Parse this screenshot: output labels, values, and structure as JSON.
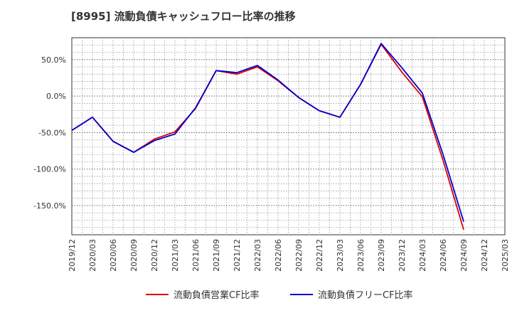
{
  "chart_data": {
    "type": "line",
    "title": "[8995]  流動負債キャッシュフロー比率の推移",
    "xlabel": "",
    "ylabel": "",
    "ylim": [
      -190,
      80
    ],
    "y_ticks": [
      50,
      0,
      -50,
      -100,
      -150
    ],
    "y_tick_labels": [
      "50.0%",
      "0.0%",
      "-50.0%",
      "-100.0%",
      "-150.0%"
    ],
    "x_tick_labels": [
      "2019/12",
      "2020/03",
      "2020/06",
      "2020/09",
      "2020/12",
      "2021/03",
      "2021/06",
      "2021/09",
      "2021/12",
      "2022/03",
      "2022/06",
      "2022/09",
      "2022/12",
      "2023/03",
      "2023/06",
      "2023/09",
      "2023/12",
      "2024/03",
      "2024/06",
      "2024/09",
      "2024/12",
      "2025/03"
    ],
    "grid": true,
    "legend_position": "bottom",
    "series": [
      {
        "name": "流動負債営業CF比率",
        "color": "#dd0000",
        "values": [
          -47,
          -29,
          -62,
          -77,
          -59,
          -49,
          -17,
          35,
          30,
          40,
          21,
          -2,
          -20,
          -29,
          16,
          71,
          33,
          -1,
          -88,
          -183,
          null,
          null
        ]
      },
      {
        "name": "流動負債フリーCF比率",
        "color": "#0000cc",
        "values": [
          -47,
          -29,
          -62,
          -77,
          -61,
          -52,
          -16,
          35,
          32,
          42,
          22,
          -2,
          -20,
          -29,
          16,
          72,
          39,
          4,
          -80,
          -172,
          null,
          null
        ]
      }
    ]
  }
}
